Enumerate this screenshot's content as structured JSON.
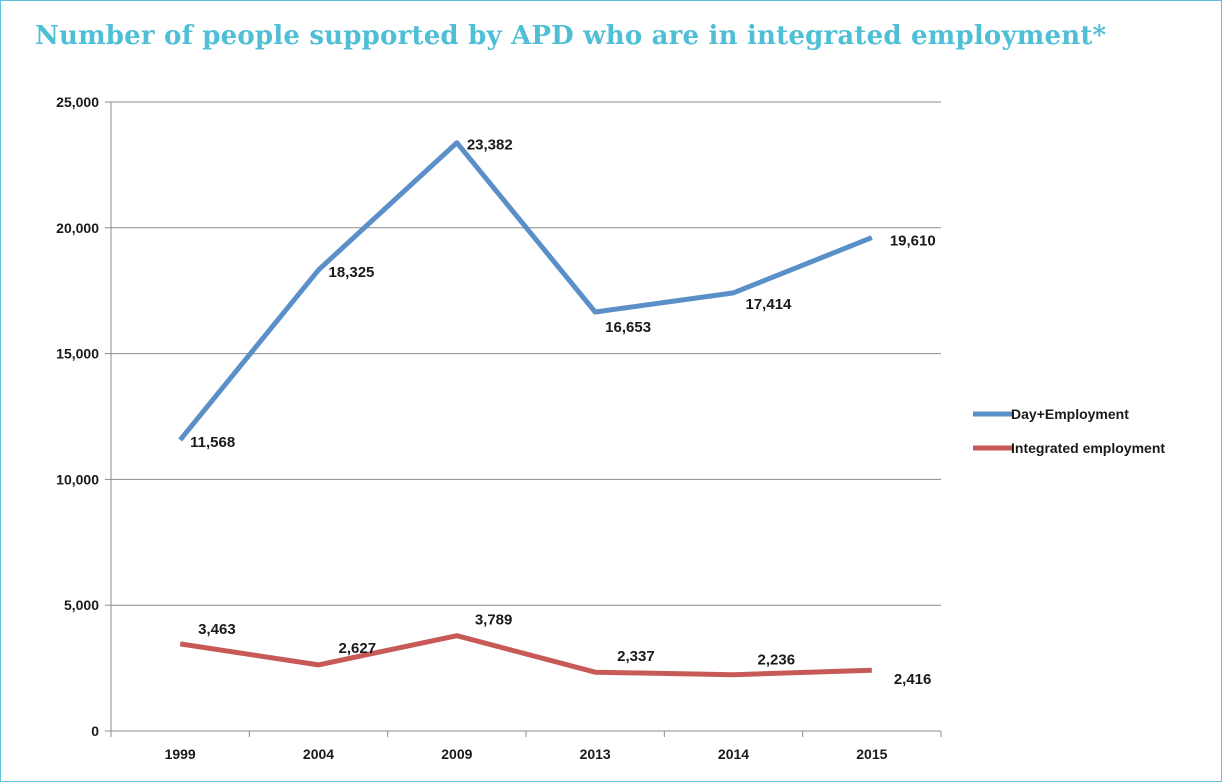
{
  "chart_data": {
    "type": "line",
    "title": "Number of people supported by APD who are in integrated employment*",
    "categories": [
      "1999",
      "2004",
      "2009",
      "2013",
      "2014",
      "2015"
    ],
    "series": [
      {
        "name": "Day+Employment",
        "values": [
          11568,
          18325,
          23382,
          16653,
          17414,
          19610
        ],
        "labels": [
          "11,568",
          "18,325",
          "23,382",
          "16,653",
          "17,414",
          "19,610"
        ],
        "color": "#5b8fc8"
      },
      {
        "name": "Integrated employment",
        "values": [
          3463,
          2627,
          3789,
          2337,
          2236,
          2416
        ],
        "labels": [
          "3,463",
          "2,627",
          "3,789",
          "2,337",
          "2,236",
          "2,416"
        ],
        "color": "#c75a57"
      }
    ],
    "ylim": [
      0,
      25000
    ],
    "yticks": [
      0,
      5000,
      10000,
      15000,
      20000,
      25000
    ],
    "ytick_labels": [
      "0",
      "5,000",
      "10,000",
      "15,000",
      "20,000",
      "25,000"
    ],
    "grid": true,
    "legend": "right",
    "title_color": "#4fbfd6",
    "frame_color": "#5bc3d6"
  }
}
